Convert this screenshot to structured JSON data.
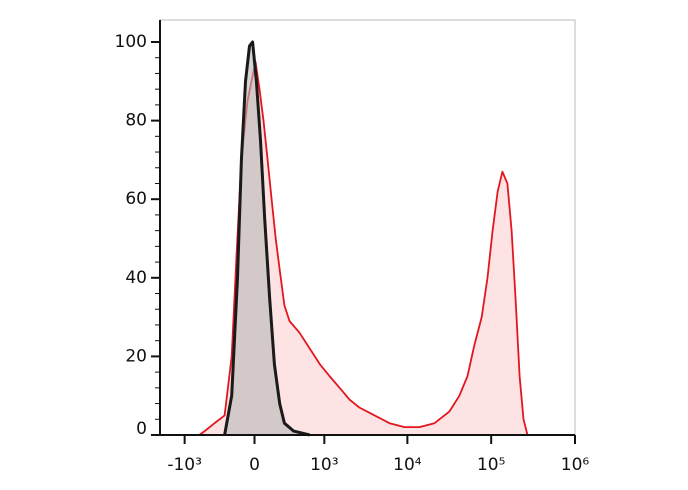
{
  "chart_data": {
    "type": "histogram-overlay",
    "xscale": "biexponential",
    "xlim": [
      -2000,
      1000000
    ],
    "ylim": [
      0,
      100
    ],
    "xticks": [
      {
        "value": -1000,
        "label": "-10³"
      },
      0,
      {
        "value": 1000,
        "label": "10³"
      },
      {
        "value": 10000,
        "label": "10⁴"
      },
      {
        "value": 100000,
        "label": "10⁵"
      },
      {
        "value": 1000000,
        "label": "10⁶"
      }
    ],
    "yticks": [
      0,
      20,
      40,
      60,
      80,
      100
    ],
    "series": [
      {
        "color": "#e3161f",
        "fill": "#fde3e4",
        "x": [
          -650,
          -550,
          -400,
          -275,
          -200,
          -155,
          -110,
          -58,
          -25,
          8,
          41,
          75,
          110,
          146,
          185,
          225,
          275,
          335,
          475,
          650,
          880,
          1160,
          1540,
          2030,
          2660,
          4060,
          6120,
          9240,
          13900,
          21100,
          31800,
          41800,
          52200,
          63200,
          77000,
          90400,
          104000,
          119500,
          136000,
          156000,
          175000,
          195000,
          218000,
          243000,
          271000
        ],
        "values": [
          0,
          1,
          3,
          5,
          20,
          45,
          70,
          85,
          90,
          95,
          88,
          80,
          70,
          60,
          50,
          42,
          33,
          29,
          26,
          22,
          18,
          15,
          12,
          9,
          7,
          5,
          3,
          2,
          2,
          3,
          6,
          10,
          15,
          23,
          30,
          40,
          52,
          62,
          67,
          64,
          52,
          35,
          15,
          4,
          0
        ]
      },
      {
        "color": "#1a1a1a",
        "fill": "#b8b8b8",
        "x": [
          -275,
          -200,
          -145,
          -110,
          -75,
          -41,
          -16,
          16,
          50,
          85,
          128,
          172,
          225,
          275,
          390,
          650
        ],
        "values": [
          0,
          10,
          40,
          70,
          90,
          99,
          100,
          90,
          75,
          55,
          35,
          18,
          8,
          3,
          1,
          0
        ]
      }
    ]
  }
}
